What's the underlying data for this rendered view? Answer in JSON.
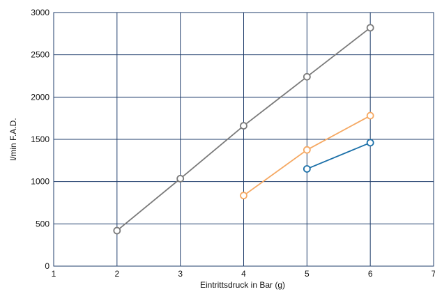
{
  "chart_data": {
    "type": "line",
    "title": "",
    "xlabel": "Eintrittsdruck in Bar (g)",
    "ylabel": "l/min F.A.D.",
    "xlim": [
      1,
      7
    ],
    "ylim": [
      0,
      3000
    ],
    "xticks": [
      1,
      2,
      3,
      4,
      5,
      6,
      7
    ],
    "yticks": [
      0,
      500,
      1000,
      1500,
      2000,
      2500,
      3000
    ],
    "grid": true,
    "legend": "none",
    "series": [
      {
        "color": "#7a7a7a",
        "x": [
          2,
          3,
          4,
          5,
          6
        ],
        "y": [
          420,
          1035,
          1660,
          2240,
          2820
        ]
      },
      {
        "color": "#f5a862",
        "x": [
          4,
          5,
          6
        ],
        "y": [
          835,
          1375,
          1780
        ]
      },
      {
        "color": "#1a6fa8",
        "x": [
          5,
          6
        ],
        "y": [
          1150,
          1460
        ]
      }
    ]
  },
  "colors": {
    "grid": "#1f3d6b",
    "background": "#ffffff"
  }
}
